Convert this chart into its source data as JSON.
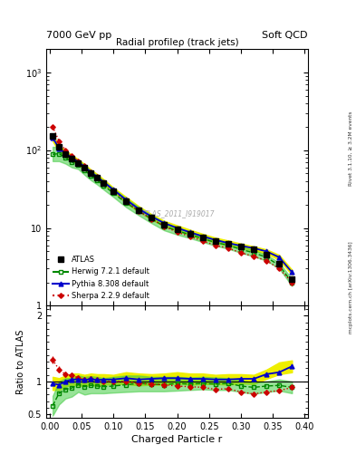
{
  "title_left": "7000 GeV pp",
  "title_right": "Soft QCD",
  "plot_title": "Radial profileρ (track jets)",
  "xlabel": "Charged Particle r",
  "ylabel_ratio": "Ratio to ATLAS",
  "right_label_top": "Rivet 3.1.10, ≥ 3.2M events",
  "right_label_bot": "mcplots.cern.ch [arXiv:1306.3436]",
  "watermark": "ATLAS_2011_I919017",
  "r_centers": [
    0.005,
    0.015,
    0.025,
    0.035,
    0.045,
    0.055,
    0.065,
    0.075,
    0.085,
    0.1,
    0.12,
    0.14,
    0.16,
    0.18,
    0.2,
    0.22,
    0.24,
    0.26,
    0.28,
    0.3,
    0.32,
    0.34,
    0.36,
    0.38
  ],
  "atlas_y": [
    150,
    110,
    90,
    78,
    68,
    60,
    50,
    44,
    38,
    30,
    22,
    17,
    13.5,
    11,
    9.5,
    8.5,
    7.5,
    6.8,
    6.2,
    5.7,
    5.3,
    4.5,
    3.5,
    2.2
  ],
  "atlas_yerr": [
    8,
    5,
    4,
    3.5,
    3,
    2.5,
    2.2,
    2,
    1.8,
    1.5,
    1.2,
    1.0,
    0.8,
    0.7,
    0.6,
    0.5,
    0.5,
    0.4,
    0.4,
    0.35,
    0.3,
    0.3,
    0.2,
    0.15
  ],
  "herwig_y": [
    88,
    90,
    80,
    70,
    65,
    55,
    47,
    41,
    35,
    28,
    21,
    16.5,
    13,
    10.5,
    9.2,
    8.2,
    7.3,
    6.5,
    6.0,
    5.3,
    4.8,
    4.2,
    3.3,
    2.0
  ],
  "herwig_band_hi": [
    110,
    110,
    95,
    82,
    74,
    64,
    54,
    47,
    40,
    32,
    24,
    18.5,
    14.5,
    11.8,
    10.2,
    9.0,
    8.0,
    7.2,
    6.5,
    5.8,
    5.2,
    4.5,
    3.6,
    2.2
  ],
  "herwig_band_lo": [
    72,
    72,
    67,
    60,
    57,
    48,
    41,
    36,
    31,
    25,
    18.5,
    14.5,
    11.5,
    9.3,
    8.2,
    7.4,
    6.6,
    5.9,
    5.4,
    4.8,
    4.3,
    3.8,
    3.0,
    1.8
  ],
  "pythia_y": [
    145,
    105,
    90,
    80,
    70,
    61,
    52,
    45,
    39,
    31,
    23,
    17.5,
    14,
    11.5,
    10,
    8.8,
    7.8,
    7.0,
    6.4,
    5.9,
    5.5,
    5.0,
    4.2,
    2.7
  ],
  "pythia_band_hi": [
    160,
    115,
    98,
    87,
    76,
    66,
    56,
    49,
    42,
    33,
    25,
    19,
    15,
    12.3,
    10.8,
    9.5,
    8.4,
    7.5,
    6.9,
    6.3,
    5.8,
    5.3,
    4.5,
    2.9
  ],
  "pythia_band_lo": [
    130,
    96,
    83,
    74,
    64,
    56,
    48,
    41,
    36,
    29,
    21,
    16,
    12.8,
    10.5,
    9.2,
    8.1,
    7.2,
    6.5,
    5.9,
    5.5,
    5.1,
    4.7,
    3.9,
    2.5
  ],
  "sherpa_y": [
    200,
    130,
    100,
    85,
    72,
    62,
    52,
    45,
    38,
    30,
    22,
    16.5,
    13,
    10.5,
    8.8,
    7.8,
    6.8,
    6.0,
    5.5,
    4.8,
    4.3,
    3.8,
    3.0,
    2.0
  ],
  "ratio_herwig": [
    0.63,
    0.82,
    0.88,
    0.9,
    0.95,
    0.92,
    0.94,
    0.93,
    0.92,
    0.93,
    0.95,
    0.97,
    0.96,
    0.95,
    0.97,
    0.96,
    0.97,
    0.96,
    0.97,
    0.93,
    0.91,
    0.93,
    0.94,
    0.91
  ],
  "ratio_herwig_band_hi": [
    0.78,
    1.0,
    1.05,
    1.05,
    1.09,
    1.07,
    1.08,
    1.07,
    1.05,
    1.07,
    1.09,
    1.09,
    1.07,
    1.07,
    1.07,
    1.06,
    1.07,
    1.06,
    1.05,
    1.02,
    0.98,
    1.0,
    1.03,
    1.0
  ],
  "ratio_herwig_band_lo": [
    0.48,
    0.65,
    0.74,
    0.77,
    0.84,
    0.8,
    0.82,
    0.82,
    0.82,
    0.83,
    0.84,
    0.85,
    0.85,
    0.85,
    0.86,
    0.87,
    0.88,
    0.87,
    0.87,
    0.84,
    0.81,
    0.84,
    0.86,
    0.82
  ],
  "ratio_pythia": [
    0.97,
    0.95,
    1.0,
    1.03,
    1.03,
    1.02,
    1.04,
    1.02,
    1.03,
    1.03,
    1.05,
    1.03,
    1.04,
    1.05,
    1.05,
    1.04,
    1.04,
    1.03,
    1.03,
    1.04,
    1.04,
    1.11,
    1.14,
    1.23
  ],
  "ratio_pythia_band_hi": [
    1.07,
    1.05,
    1.09,
    1.12,
    1.12,
    1.1,
    1.12,
    1.11,
    1.11,
    1.1,
    1.14,
    1.12,
    1.11,
    1.12,
    1.14,
    1.12,
    1.12,
    1.1,
    1.11,
    1.11,
    1.1,
    1.18,
    1.29,
    1.32
  ],
  "ratio_pythia_band_lo": [
    0.87,
    0.87,
    0.92,
    0.95,
    0.94,
    0.93,
    0.95,
    0.93,
    0.95,
    0.96,
    0.96,
    0.94,
    0.95,
    0.95,
    0.97,
    0.95,
    0.96,
    0.96,
    0.95,
    0.97,
    0.96,
    1.04,
    1.11,
    1.14
  ],
  "ratio_sherpa": [
    1.33,
    1.18,
    1.11,
    1.09,
    1.06,
    1.03,
    1.04,
    1.02,
    1.0,
    1.0,
    1.0,
    0.97,
    0.96,
    0.95,
    0.93,
    0.92,
    0.91,
    0.88,
    0.89,
    0.84,
    0.81,
    0.84,
    0.86,
    0.91
  ],
  "ratio_sherpa_err": [
    0.06,
    0.05,
    0.04,
    0.04,
    0.04,
    0.04,
    0.04,
    0.03,
    0.03,
    0.03,
    0.03,
    0.03,
    0.03,
    0.03,
    0.03,
    0.03,
    0.03,
    0.03,
    0.03,
    0.03,
    0.03,
    0.03,
    0.03,
    0.03
  ],
  "atlas_color": "#000000",
  "herwig_color": "#008800",
  "pythia_color": "#0000cc",
  "sherpa_color": "#cc0000",
  "yellow_band_color": "#eeee00",
  "green_band_color": "#44cc44"
}
